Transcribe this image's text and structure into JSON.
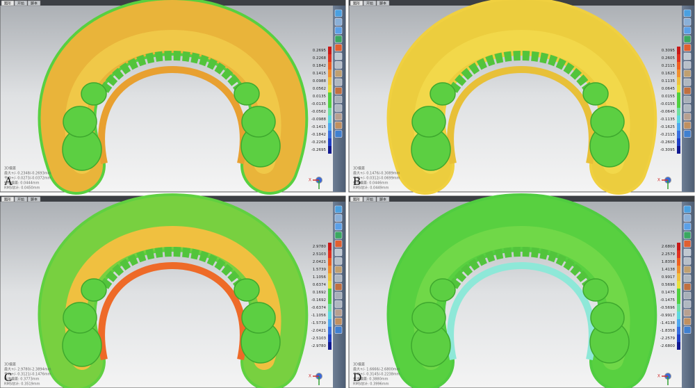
{
  "axis_label": "X",
  "panels": [
    {
      "label": "A",
      "tabs": [
        "图形",
        "开始",
        "脚本"
      ],
      "stats": [
        "3D偏差",
        "最大+/- 0.2348/-0.2693mm",
        "平均+/- 0.0273/-0.0372mm",
        "标准偏差: 0.0444mm",
        "RMS估计: 0.0450mm"
      ],
      "scale": [
        "0.2695",
        "0.2268",
        "0.1842",
        "0.1415",
        "0.0988",
        "0.0562",
        "0.0135",
        "-0.0135",
        "-0.0562",
        "-0.0988",
        "-0.1415",
        "-0.1842",
        "-0.2268",
        "-0.2695"
      ]
    },
    {
      "label": "B",
      "tabs": [
        "图形",
        "开始",
        "脚本"
      ],
      "stats": [
        "3D偏差",
        "最大+/- 0.1476/-0.3089mm",
        "平均+/- 0.0312/-0.0699mm",
        "标准偏差: 0.0446mm",
        "RMS估计: 0.0449mm"
      ],
      "scale": [
        "0.3095",
        "0.2605",
        "0.2115",
        "0.1625",
        "0.1135",
        "0.0645",
        "0.0155",
        "-0.0155",
        "-0.0645",
        "-0.1135",
        "-0.1625",
        "-0.2115",
        "-0.2605",
        "-0.3095"
      ]
    },
    {
      "label": "C",
      "tabs": [
        "图形",
        "开始",
        "脚本"
      ],
      "stats": [
        "3D偏差",
        "最大+/- 2.9780/-2.3894mm",
        "平均+/- 0.3121/-0.1476mm",
        "标准偏差: 0.3773mm",
        "RMS估计: 0.3519mm"
      ],
      "scale": [
        "2.9780",
        "2.5103",
        "2.0421",
        "1.5739",
        "1.1056",
        "0.6374",
        "0.1692",
        "-0.1692",
        "-0.6374",
        "-1.1056",
        "-1.5739",
        "-2.0421",
        "-2.5103",
        "-2.9780"
      ]
    },
    {
      "label": "D",
      "tabs": [
        "图形",
        "开始",
        "脚本"
      ],
      "stats": [
        "3D偏差",
        "最大+/- 1.6666/-2.6800mm",
        "平均+/- 0.3145/-0.2238mm",
        "标准偏差: 0.3880mm",
        "RMS估计: 0.3996mm"
      ],
      "scale": [
        "2.6800",
        "2.2579",
        "1.8358",
        "1.4138",
        "0.9917",
        "0.5696",
        "0.1475",
        "-0.1475",
        "-0.5696",
        "-0.9917",
        "-1.4138",
        "-1.8358",
        "-2.2579",
        "-2.6800"
      ]
    }
  ]
}
